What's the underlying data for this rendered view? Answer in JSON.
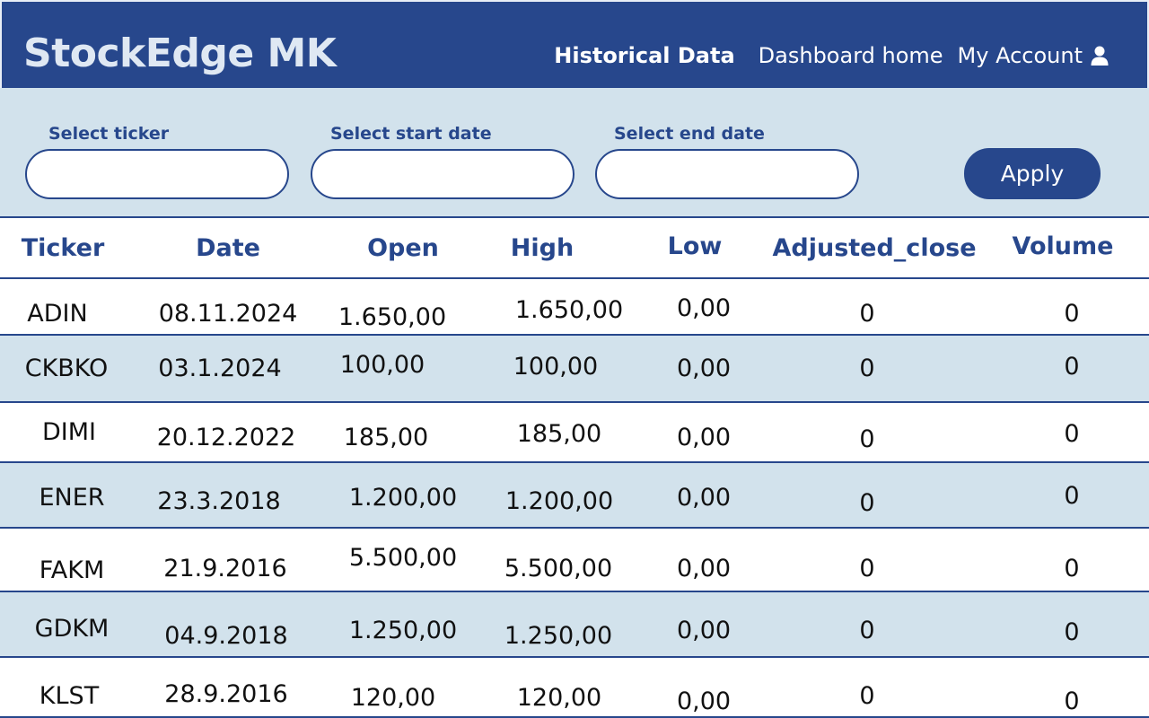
{
  "header": {
    "brand": "StockEdge MK",
    "nav": {
      "historical": "Historical Data",
      "dashboard": "Dashboard home",
      "account": "My Account"
    }
  },
  "filters": {
    "ticker_label": "Select ticker",
    "start_label": "Select start date",
    "end_label": "Select end date",
    "apply_label": "Apply"
  },
  "table": {
    "columns": [
      "Ticker",
      "Date",
      "Open",
      "High",
      "Low",
      "Adjusted_close",
      "Volume"
    ],
    "rows": [
      [
        "ADIN",
        "08.11.2024",
        "1.650,00",
        "1.650,00",
        "0,00",
        "0",
        "0"
      ],
      [
        "CKBKO",
        "03.1.2024",
        "100,00",
        "100,00",
        "0,00",
        "0",
        "0"
      ],
      [
        "DIMI",
        "20.12.2022",
        "185,00",
        "185,00",
        "0,00",
        "0",
        "0"
      ],
      [
        "ENER",
        "23.3.2018",
        "1.200,00",
        "1.200,00",
        "0,00",
        "0",
        "0"
      ],
      [
        "FAKM",
        "21.9.2016",
        "5.500,00",
        "5.500,00",
        "0,00",
        "0",
        "0"
      ],
      [
        "GDKM",
        "04.9.2018",
        "1.250,00",
        "1.250,00",
        "0,00",
        "0",
        "0"
      ],
      [
        "KLST",
        "28.9.2016",
        "120,00",
        "120,00",
        "0,00",
        "0",
        "0"
      ]
    ]
  },
  "colors": {
    "brand_blue": "#27478c",
    "band_blue": "#d2e2ec"
  }
}
